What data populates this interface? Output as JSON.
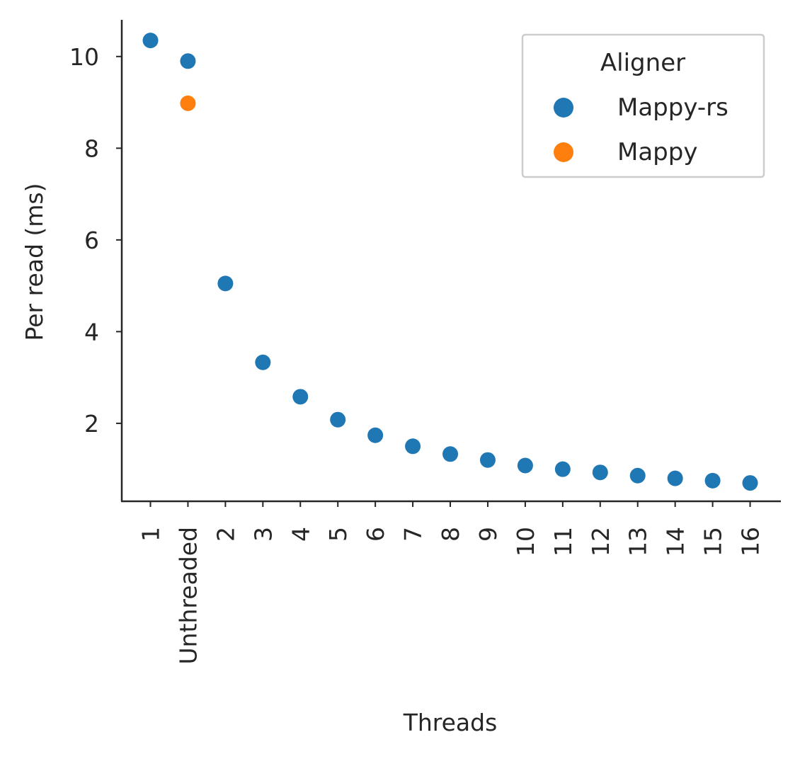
{
  "chart_data": {
    "type": "scatter",
    "title": "",
    "xlabel": "Threads",
    "ylabel": "Per read (ms)",
    "categories": [
      "1",
      "Unthreaded",
      "2",
      "3",
      "4",
      "5",
      "6",
      "7",
      "8",
      "9",
      "10",
      "11",
      "12",
      "13",
      "14",
      "15",
      "16"
    ],
    "yticks": [
      "2",
      "4",
      "6",
      "8",
      "10"
    ],
    "ylim": [
      0.3,
      10.8
    ],
    "grid": false,
    "legend": {
      "title": "Aligner",
      "placement": "top-right"
    },
    "series": [
      {
        "name": "Mappy-rs",
        "color": "#1f77b4",
        "points": [
          {
            "x": "1",
            "y": 10.35
          },
          {
            "x": "Unthreaded",
            "y": 9.9
          },
          {
            "x": "2",
            "y": 5.05
          },
          {
            "x": "3",
            "y": 3.33
          },
          {
            "x": "4",
            "y": 2.58
          },
          {
            "x": "5",
            "y": 2.08
          },
          {
            "x": "6",
            "y": 1.74
          },
          {
            "x": "7",
            "y": 1.5
          },
          {
            "x": "8",
            "y": 1.33
          },
          {
            "x": "9",
            "y": 1.2
          },
          {
            "x": "10",
            "y": 1.08
          },
          {
            "x": "11",
            "y": 1.0
          },
          {
            "x": "12",
            "y": 0.93
          },
          {
            "x": "13",
            "y": 0.86
          },
          {
            "x": "14",
            "y": 0.8
          },
          {
            "x": "15",
            "y": 0.75
          },
          {
            "x": "16",
            "y": 0.7
          }
        ]
      },
      {
        "name": "Mappy",
        "color": "#ff7f0e",
        "points": [
          {
            "x": "Unthreaded",
            "y": 8.98
          }
        ]
      }
    ]
  }
}
